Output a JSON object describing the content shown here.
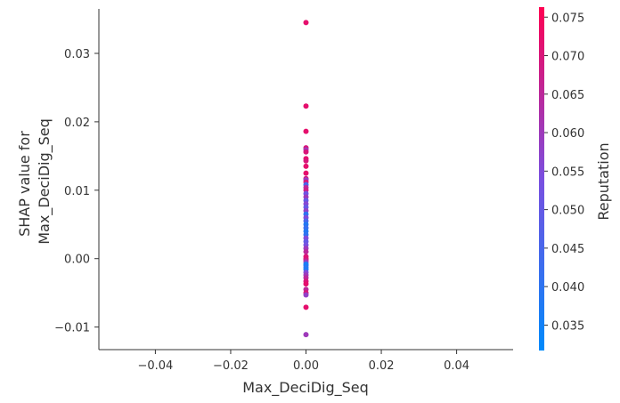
{
  "chart_data": {
    "type": "scatter",
    "xlabel": "Max_DeciDig_Seq",
    "ylabel_lines": [
      "SHAP value for",
      "Max_DeciDig_Seq"
    ],
    "xlim": [
      -0.055,
      0.055
    ],
    "ylim": [
      -0.0133,
      0.0365
    ],
    "xticks": [
      -0.04,
      -0.02,
      0.0,
      0.02,
      0.04
    ],
    "xtick_labels": [
      "−0.04",
      "−0.02",
      "0.00",
      "0.02",
      "0.04"
    ],
    "yticks": [
      -0.01,
      0.0,
      0.01,
      0.02,
      0.03
    ],
    "ytick_labels": [
      "−0.01",
      "0.00",
      "0.01",
      "0.02",
      "0.03"
    ],
    "colorbar": {
      "label": "Reputation",
      "range": [
        0.0317,
        0.0763
      ],
      "ticks": [
        0.035,
        0.04,
        0.045,
        0.05,
        0.055,
        0.06,
        0.065,
        0.07,
        0.075
      ],
      "tick_labels": [
        "0.035",
        "0.040",
        "0.045",
        "0.050",
        "0.055",
        "0.060",
        "0.065",
        "0.070",
        "0.075"
      ],
      "colors": [
        "#008afb",
        "#7a4fe0",
        "#ff0052"
      ]
    },
    "points": [
      {
        "x": 0,
        "y": 0.0345,
        "c": 0.072
      },
      {
        "x": 0,
        "y": 0.0223,
        "c": 0.072
      },
      {
        "x": 0,
        "y": 0.0186,
        "c": 0.072
      },
      {
        "x": 0,
        "y": 0.0162,
        "c": 0.07
      },
      {
        "x": 0,
        "y": 0.0159,
        "c": 0.06
      },
      {
        "x": 0,
        "y": 0.0156,
        "c": 0.07
      },
      {
        "x": 0,
        "y": 0.0146,
        "c": 0.072
      },
      {
        "x": 0,
        "y": 0.0143,
        "c": 0.07
      },
      {
        "x": 0,
        "y": 0.0135,
        "c": 0.072
      },
      {
        "x": 0,
        "y": 0.0125,
        "c": 0.072
      },
      {
        "x": 0,
        "y": 0.0117,
        "c": 0.069
      },
      {
        "x": 0,
        "y": 0.0115,
        "c": 0.058
      },
      {
        "x": 0,
        "y": 0.0112,
        "c": 0.07
      },
      {
        "x": 0,
        "y": 0.0108,
        "c": 0.045
      },
      {
        "x": 0,
        "y": 0.0104,
        "c": 0.065
      },
      {
        "x": 0,
        "y": 0.01,
        "c": 0.068
      },
      {
        "x": 0,
        "y": 0.0095,
        "c": 0.052
      },
      {
        "x": 0,
        "y": 0.009,
        "c": 0.06
      },
      {
        "x": 0,
        "y": 0.0085,
        "c": 0.05
      },
      {
        "x": 0,
        "y": 0.008,
        "c": 0.056
      },
      {
        "x": 0,
        "y": 0.0075,
        "c": 0.05
      },
      {
        "x": 0,
        "y": 0.007,
        "c": 0.058
      },
      {
        "x": 0,
        "y": 0.0065,
        "c": 0.04
      },
      {
        "x": 0,
        "y": 0.006,
        "c": 0.055
      },
      {
        "x": 0,
        "y": 0.0055,
        "c": 0.045
      },
      {
        "x": 0,
        "y": 0.005,
        "c": 0.038
      },
      {
        "x": 0,
        "y": 0.0045,
        "c": 0.042
      },
      {
        "x": 0,
        "y": 0.004,
        "c": 0.038
      },
      {
        "x": 0,
        "y": 0.0035,
        "c": 0.04
      },
      {
        "x": 0,
        "y": 0.003,
        "c": 0.055
      },
      {
        "x": 0,
        "y": 0.0025,
        "c": 0.05
      },
      {
        "x": 0,
        "y": 0.002,
        "c": 0.053
      },
      {
        "x": 0,
        "y": 0.0015,
        "c": 0.06
      },
      {
        "x": 0,
        "y": 0.001,
        "c": 0.065
      },
      {
        "x": 0,
        "y": 0.0003,
        "c": 0.07
      },
      {
        "x": 0,
        "y": 0.0,
        "c": 0.072
      },
      {
        "x": 0,
        "y": -0.0002,
        "c": 0.068
      },
      {
        "x": 0,
        "y": -0.0005,
        "c": 0.06
      },
      {
        "x": 0,
        "y": -0.0008,
        "c": 0.038
      },
      {
        "x": 0,
        "y": -0.001,
        "c": 0.036
      },
      {
        "x": 0,
        "y": -0.0013,
        "c": 0.04
      },
      {
        "x": 0,
        "y": -0.0016,
        "c": 0.037
      },
      {
        "x": 0,
        "y": -0.002,
        "c": 0.055
      },
      {
        "x": 0,
        "y": -0.0024,
        "c": 0.06
      },
      {
        "x": 0,
        "y": -0.0028,
        "c": 0.065
      },
      {
        "x": 0,
        "y": -0.0033,
        "c": 0.07
      },
      {
        "x": 0,
        "y": -0.0037,
        "c": 0.072
      },
      {
        "x": 0,
        "y": -0.0045,
        "c": 0.065
      },
      {
        "x": 0,
        "y": -0.005,
        "c": 0.07
      },
      {
        "x": 0,
        "y": -0.0053,
        "c": 0.058
      },
      {
        "x": 0,
        "y": -0.0071,
        "c": 0.072
      },
      {
        "x": 0,
        "y": -0.0111,
        "c": 0.06
      }
    ]
  }
}
